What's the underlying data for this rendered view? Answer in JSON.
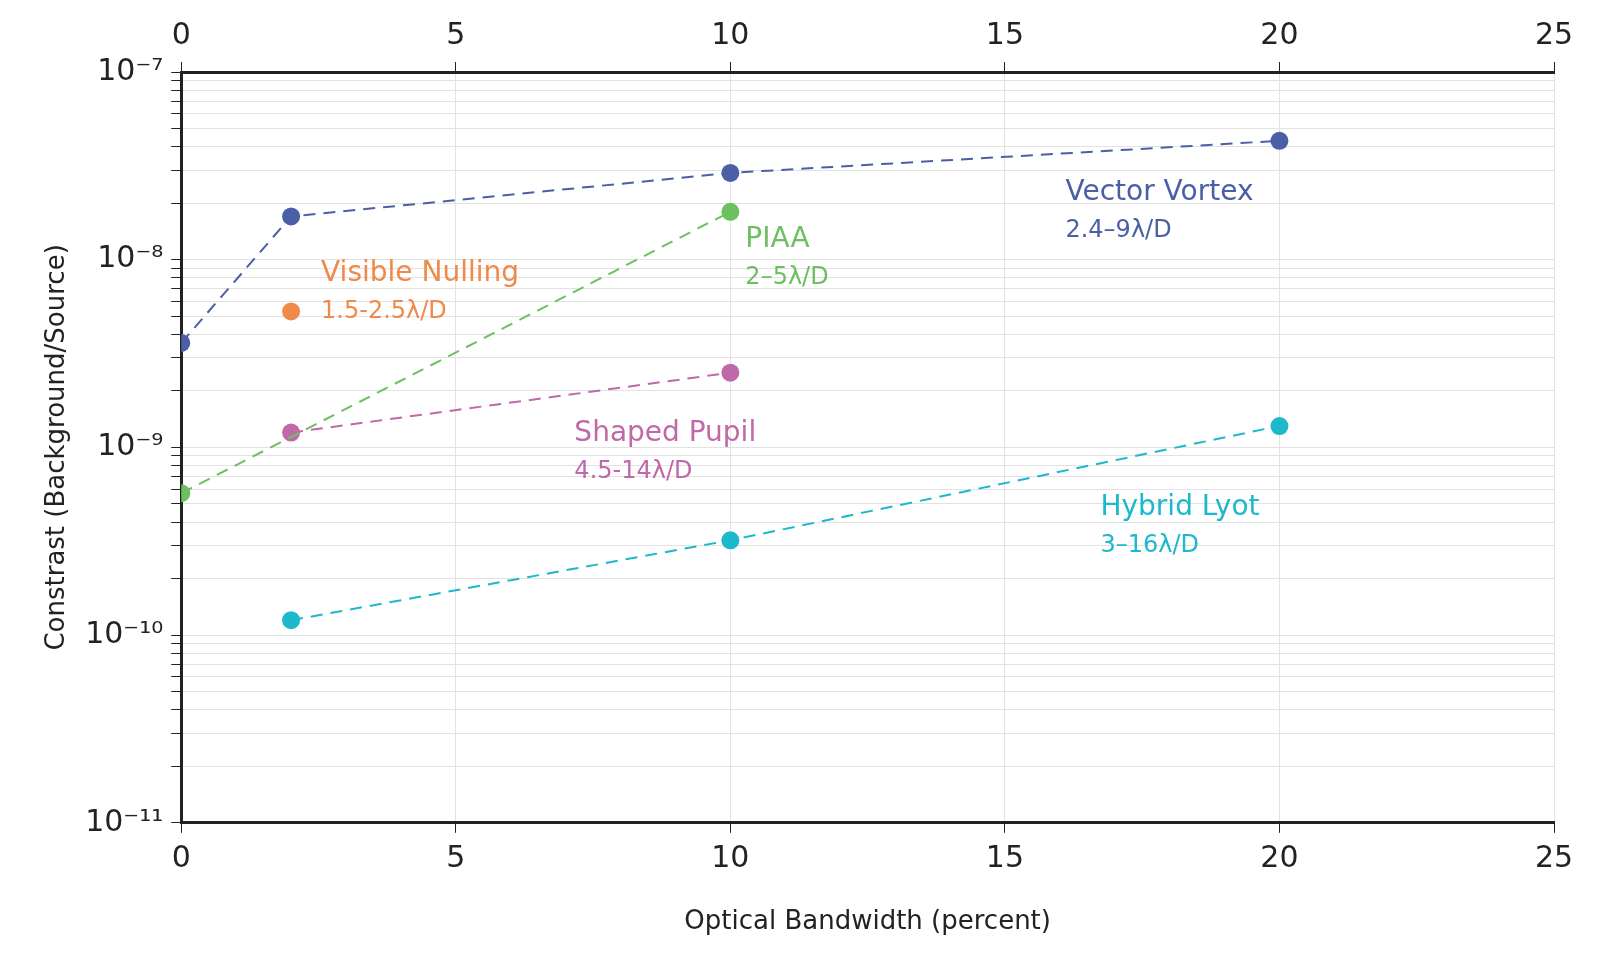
{
  "chart_data": {
    "type": "line",
    "xlabel": "Optical Bandwidth (percent)",
    "ylabel": "Constrast (Background/Source)",
    "log": "y",
    "grid": true,
    "marker": "circle",
    "line_style": "dashed",
    "legend": false,
    "xlim": [
      0,
      25
    ],
    "xticks": [
      0,
      5,
      10,
      15,
      20,
      25
    ],
    "x2lim": [
      0,
      25
    ],
    "x2ticks": [
      0,
      5,
      10,
      15,
      20,
      25
    ],
    "ylim": [
      1e-11,
      1e-07
    ],
    "yticks": [
      {
        "value": 1e-11,
        "label": "10⁻¹¹"
      },
      {
        "value": 2e-11,
        "label": null
      },
      {
        "value": 3e-11,
        "label": null
      },
      {
        "value": 4e-11,
        "label": null
      },
      {
        "value": 5e-11,
        "label": null
      },
      {
        "value": 6e-11,
        "label": null
      },
      {
        "value": 7e-11,
        "label": null
      },
      {
        "value": 8e-11,
        "label": null
      },
      {
        "value": 9e-11,
        "label": null
      },
      {
        "value": 1e-10,
        "label": "10⁻¹⁰"
      },
      {
        "value": 2e-10,
        "label": null
      },
      {
        "value": 3e-10,
        "label": null
      },
      {
        "value": 4e-10,
        "label": null
      },
      {
        "value": 5e-10,
        "label": null
      },
      {
        "value": 6e-10,
        "label": null
      },
      {
        "value": 7e-10,
        "label": null
      },
      {
        "value": 8e-10,
        "label": null
      },
      {
        "value": 9e-10,
        "label": null
      },
      {
        "value": 1e-09,
        "label": "10⁻⁹"
      },
      {
        "value": 2e-09,
        "label": null
      },
      {
        "value": 3e-09,
        "label": null
      },
      {
        "value": 4e-09,
        "label": null
      },
      {
        "value": 5e-09,
        "label": null
      },
      {
        "value": 6e-09,
        "label": null
      },
      {
        "value": 7e-09,
        "label": null
      },
      {
        "value": 8e-09,
        "label": null
      },
      {
        "value": 9e-09,
        "label": null
      },
      {
        "value": 1e-08,
        "label": "10⁻⁸"
      },
      {
        "value": 2e-08,
        "label": null
      },
      {
        "value": 3e-08,
        "label": null
      },
      {
        "value": 4e-08,
        "label": null
      },
      {
        "value": 5e-08,
        "label": null
      },
      {
        "value": 6e-08,
        "label": null
      },
      {
        "value": 7e-08,
        "label": null
      },
      {
        "value": 8e-08,
        "label": null
      },
      {
        "value": 9e-08,
        "label": null
      },
      {
        "value": 1e-07,
        "label": "10⁻⁷"
      }
    ],
    "series": [
      {
        "name": "Vector Vortex",
        "color": "#4a5fa6",
        "x": [
          0,
          2,
          10,
          20
        ],
        "values": [
          3.6e-09,
          1.7e-08,
          2.9e-08,
          4.3e-08
        ]
      },
      {
        "name": "Visible Nulling",
        "color": "#f08a4b",
        "type": "scatter",
        "x": [
          2
        ],
        "values": [
          5.3e-09
        ]
      },
      {
        "name": "PIAA",
        "color": "#6cc060",
        "x": [
          0,
          10
        ],
        "values": [
          5.7e-10,
          1.8e-08
        ]
      },
      {
        "name": "Shaped Pupil",
        "color": "#c069a8",
        "x": [
          2,
          10
        ],
        "values": [
          1.2e-09,
          2.5e-09
        ]
      },
      {
        "name": "Hybrid Lyot",
        "color": "#1cb8cc",
        "x": [
          2,
          10,
          20
        ],
        "values": [
          1.2e-10,
          3.2e-10,
          1.3e-09
        ]
      }
    ],
    "annotations": [
      "2.4–9λ/D",
      "1.5-2.5λ/D",
      "2–5λ/D",
      "4.5-14λ/D",
      "3–16λ/D"
    ]
  }
}
